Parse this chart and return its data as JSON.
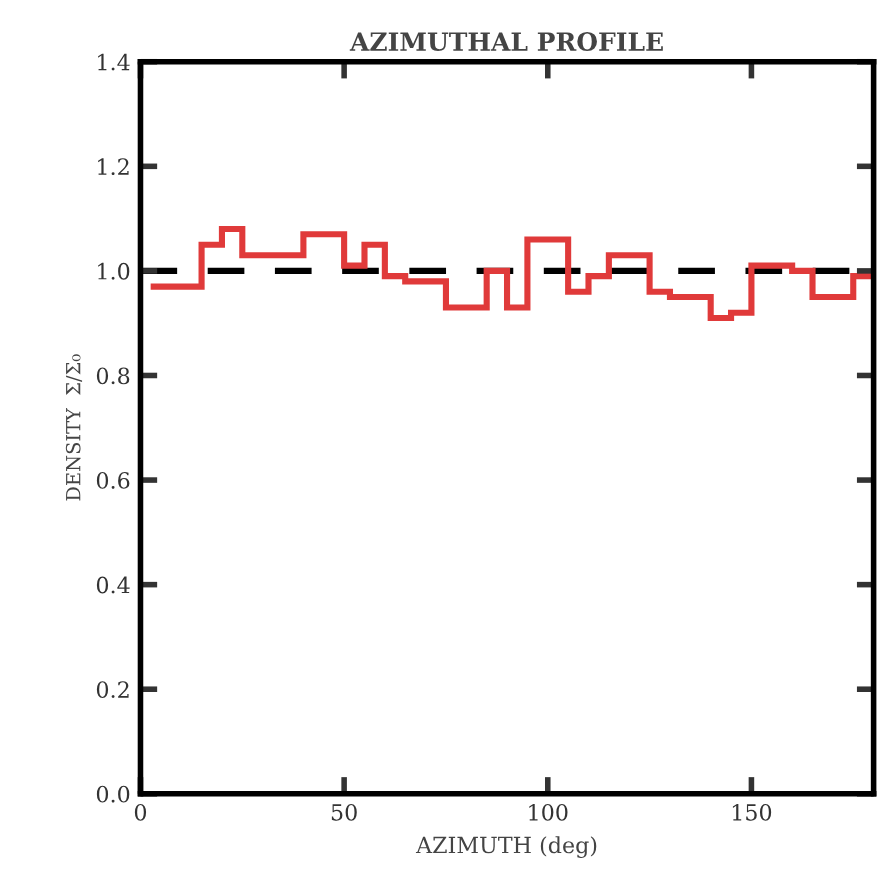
{
  "chart_data": {
    "type": "histogram",
    "title": "AZIMUTHAL PROFILE",
    "xlabel": "AZIMUTH (deg)",
    "ylabel": "DENSITY  Σ/Σ₀",
    "bins": [
      2.5,
      15,
      20,
      25,
      40,
      50,
      55,
      60,
      65,
      75,
      85,
      90,
      95,
      105,
      110,
      115,
      125,
      130,
      140,
      145,
      150,
      160,
      165,
      175,
      180
    ],
    "values": [
      0.97,
      1.05,
      1.08,
      1.03,
      1.07,
      1.01,
      1.05,
      0.99,
      0.98,
      0.93,
      1.0,
      0.93,
      1.06,
      0.96,
      0.99,
      1.03,
      0.96,
      0.95,
      0.91,
      0.92,
      1.01,
      1.0,
      0.95,
      0.99
    ],
    "color": "#e03a3a",
    "xlim": [
      0,
      180
    ],
    "xticks": [
      0,
      50,
      100,
      150
    ],
    "ylim": [
      0,
      1.4
    ],
    "yticks": [
      {
        "value": 0,
        "label": "0.0"
      },
      {
        "value": 0.2,
        "label": "0.2"
      },
      {
        "value": 0.4,
        "label": "0.4"
      },
      {
        "value": 0.6,
        "label": "0.6"
      },
      {
        "value": 0.8,
        "label": "0.8"
      },
      {
        "value": 1.0,
        "label": "1.0"
      },
      {
        "value": 1.2,
        "label": "1.2"
      },
      {
        "value": 1.4,
        "label": "1.4"
      }
    ],
    "ref_lines": [
      {
        "axis": "y",
        "value": 1.0,
        "color": "#000000",
        "line_style": "dashed"
      }
    ],
    "grid": false
  }
}
